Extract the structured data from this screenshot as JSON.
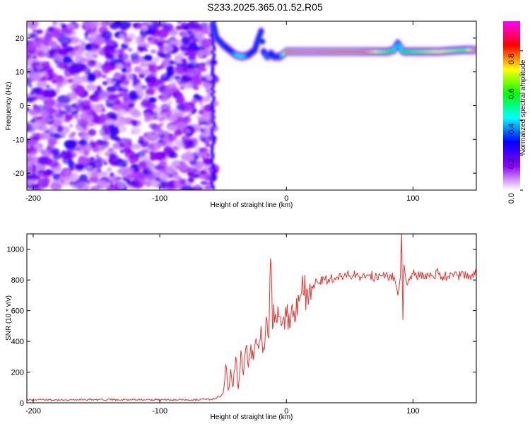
{
  "title": "S233.2025.365.01.52.R05",
  "chart_data": [
    {
      "type": "heatmap",
      "xlabel": "Height of straight line (km)",
      "ylabel": "Frequency (Hz)",
      "xlim": [
        -205,
        150
      ],
      "ylim": [
        -25,
        25
      ],
      "xticks": [
        -200,
        -100,
        0,
        100
      ],
      "yticks": [
        -20,
        -10,
        0,
        10,
        20
      ],
      "colorbar": {
        "label": "Normalized spectral amplitude",
        "range": [
          0,
          0.97
        ],
        "ticks": [
          0.0,
          0.2,
          0.4,
          0.6,
          0.8
        ],
        "colormap": [
          "#ffffff",
          "#9000ff",
          "#0000ff",
          "#00ffff",
          "#00ff00",
          "#ffff00",
          "#ff0000",
          "#ff00ff"
        ]
      },
      "noise_region": {
        "x_range": [
          -205,
          -58
        ],
        "y_range": [
          -25,
          25
        ],
        "amplitude_range": [
          0.05,
          0.25
        ]
      },
      "ridge": {
        "x": [
          -58,
          -55,
          -50,
          -45,
          -40,
          -35,
          -30,
          -25,
          -22,
          -20,
          -18,
          -15,
          -12,
          -10,
          -5,
          0,
          10,
          20,
          40,
          60,
          80,
          85,
          88,
          92,
          100,
          120,
          140,
          150
        ],
        "freq": [
          24,
          20,
          18,
          16.5,
          15,
          14.5,
          15,
          16.5,
          20,
          22,
          16,
          14.5,
          15.5,
          14.5,
          14.5,
          16,
          16,
          16,
          16,
          16,
          16,
          16.5,
          18.5,
          16,
          16,
          16,
          16.5,
          16.5
        ],
        "amplitude": [
          0.3,
          0.3,
          0.3,
          0.25,
          0.4,
          0.45,
          0.3,
          0.25,
          0.3,
          0.25,
          0.3,
          0.35,
          0.25,
          0.3,
          0.3,
          0.9,
          0.95,
          0.95,
          0.9,
          0.8,
          0.6,
          0.45,
          0.35,
          0.5,
          0.6,
          0.7,
          0.6,
          0.8
        ]
      }
    },
    {
      "type": "line",
      "xlabel": "Height of straight line (km)",
      "ylabel": "SNR (10 * v/v)",
      "xlim": [
        -205,
        150
      ],
      "ylim": [
        0,
        1100
      ],
      "xticks": [
        -200,
        -100,
        0,
        100
      ],
      "yticks": [
        0,
        200,
        400,
        600,
        800,
        1000
      ],
      "color": "#e8322e",
      "series": [
        {
          "x": [
            -205,
            -190,
            -175,
            -160,
            -145,
            -130,
            -115,
            -100,
            -85,
            -70,
            -60,
            -55,
            -50,
            -48,
            -46,
            -44,
            -42,
            -40,
            -38,
            -36,
            -34,
            -32,
            -30,
            -28,
            -26,
            -24,
            -22,
            -20,
            -18,
            -16,
            -14,
            -13,
            -12,
            -11,
            -10,
            -8,
            -6,
            -4,
            -2,
            0,
            2,
            4,
            6,
            8,
            10,
            12,
            14,
            16,
            18,
            20,
            25,
            30,
            35,
            40,
            45,
            50,
            55,
            60,
            65,
            70,
            75,
            80,
            85,
            88,
            90,
            91,
            92,
            93,
            94,
            96,
            100,
            105,
            110,
            115,
            120,
            125,
            130,
            135,
            140,
            145,
            150
          ],
          "y": [
            20,
            20,
            18,
            20,
            19,
            20,
            20,
            19,
            20,
            20,
            22,
            30,
            60,
            250,
            80,
            220,
            110,
            300,
            90,
            340,
            180,
            360,
            230,
            380,
            280,
            420,
            350,
            500,
            360,
            560,
            420,
            820,
            890,
            480,
            640,
            540,
            560,
            500,
            560,
            560,
            580,
            620,
            600,
            680,
            660,
            720,
            700,
            740,
            720,
            760,
            780,
            800,
            810,
            820,
            820,
            830,
            830,
            820,
            830,
            820,
            830,
            820,
            820,
            700,
            820,
            1100,
            540,
            900,
            820,
            780,
            840,
            820,
            840,
            830,
            840,
            820,
            840,
            830,
            840,
            830,
            840
          ]
        }
      ]
    }
  ]
}
